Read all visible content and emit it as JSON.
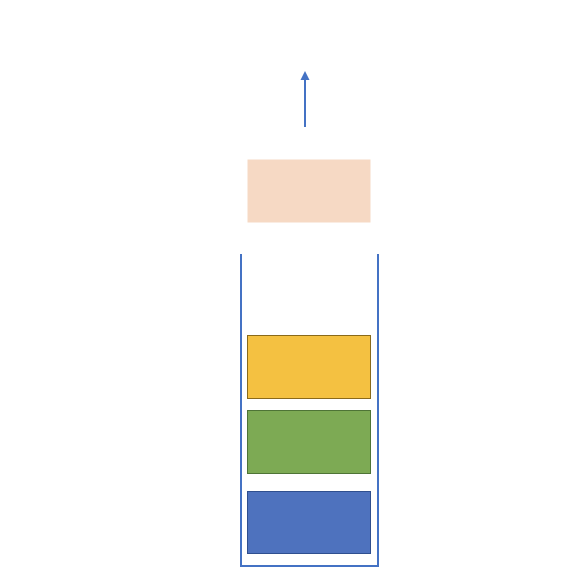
{
  "diagram": {
    "kind": "stack-pop",
    "direction": "up",
    "colors": {
      "container_stroke": "#4472C4",
      "arrow": "#4472C4",
      "popped_block": "#F8D9C2",
      "block_outline_dark": "#7F6000"
    },
    "stack_blocks_bottom_to_top": [
      {
        "id": "block-1",
        "fill": "#4E72BE",
        "stroke": "#2F4F8F"
      },
      {
        "id": "block-2",
        "fill": "#7DAA54",
        "stroke": "#4E7436"
      },
      {
        "id": "block-3",
        "fill": "#F4C141",
        "stroke": "#8A6A1A"
      }
    ],
    "popped_block": {
      "id": "popped",
      "fill": "#F6D9C4",
      "stroke": "none"
    }
  }
}
